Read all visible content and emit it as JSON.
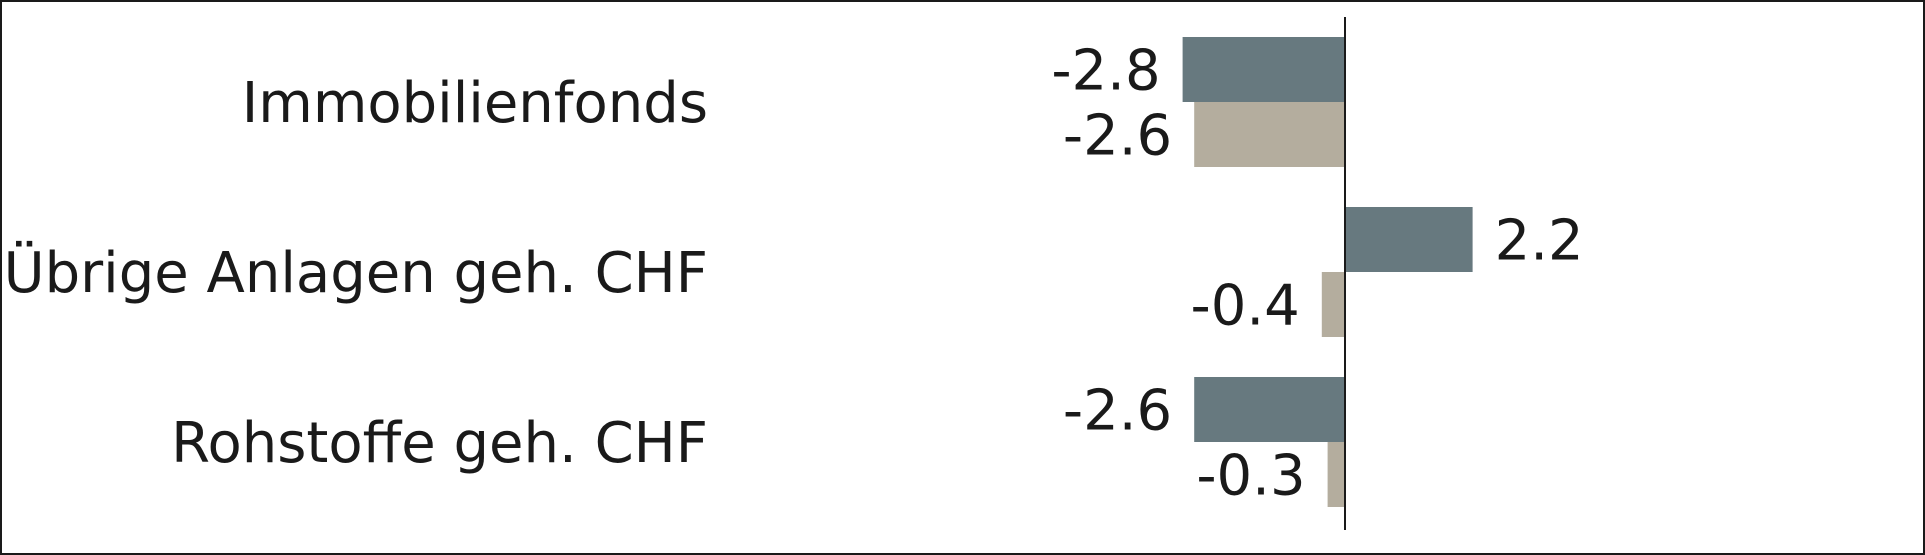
{
  "chart_data": {
    "type": "bar",
    "orientation": "horizontal",
    "categories": [
      "Immobilienfonds",
      "Übrige Anlagen geh. CHF",
      "Rohstoffe geh. CHF"
    ],
    "series": [
      {
        "values": [
          -2.8,
          2.2,
          -2.6
        ],
        "value_labels": [
          "-2.8",
          "2.2",
          "-2.6"
        ],
        "color": "#67797f"
      },
      {
        "values": [
          -2.6,
          -0.4,
          -0.3
        ],
        "value_labels": [
          "-2.6",
          "-0.4",
          "-0.3"
        ],
        "color": "#b4ad9e"
      }
    ],
    "xlim": [
      -3.5,
      5.4
    ],
    "grid": false,
    "legend": "none",
    "title": "",
    "xlabel": "",
    "ylabel": ""
  }
}
